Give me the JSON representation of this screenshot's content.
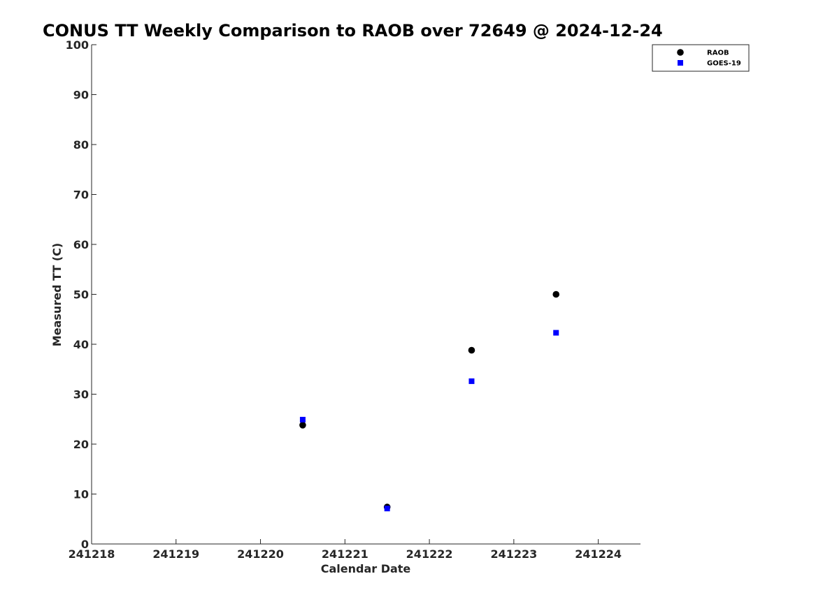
{
  "chart_data": {
    "type": "scatter",
    "title": "CONUS TT Weekly Comparison to RAOB over 72649 @ 2024-12-24",
    "xlabel": "Calendar Date",
    "ylabel": "Measured TT (C)",
    "xlim": [
      241218,
      241224.5
    ],
    "ylim": [
      0,
      100
    ],
    "x_ticks": [
      241218,
      241219,
      241220,
      241221,
      241222,
      241223,
      241224
    ],
    "x_tick_labels": [
      "241218",
      "241219",
      "241220",
      "241221",
      "241222",
      "241223",
      "241224"
    ],
    "y_ticks": [
      0,
      10,
      20,
      30,
      40,
      50,
      60,
      70,
      80,
      90,
      100
    ],
    "y_tick_labels": [
      "0",
      "10",
      "20",
      "30",
      "40",
      "50",
      "60",
      "70",
      "80",
      "90",
      "100"
    ],
    "grid": false,
    "legend_position": "top-right",
    "series": [
      {
        "name": "RAOB",
        "marker": "circle",
        "color": "#000000",
        "points": [
          {
            "x": 241220.5,
            "y": 23.8
          },
          {
            "x": 241221.5,
            "y": 7.4
          },
          {
            "x": 241222.5,
            "y": 38.8
          },
          {
            "x": 241223.5,
            "y": 50.0
          }
        ]
      },
      {
        "name": "GOES-19",
        "marker": "square",
        "color": "#0000ff",
        "points": [
          {
            "x": 241220.5,
            "y": 24.9
          },
          {
            "x": 241221.5,
            "y": 7.1
          },
          {
            "x": 241222.5,
            "y": 32.6
          },
          {
            "x": 241223.5,
            "y": 42.3
          }
        ]
      }
    ]
  }
}
